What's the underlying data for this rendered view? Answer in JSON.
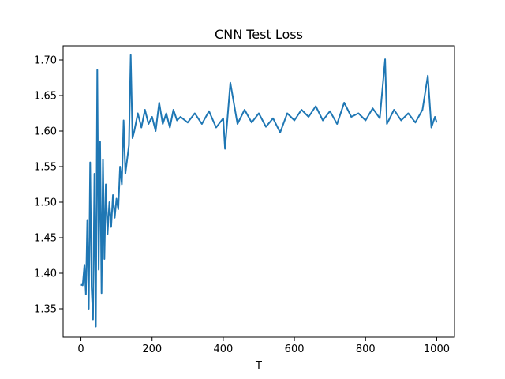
{
  "chart_data": {
    "type": "line",
    "title": "CNN Test Loss",
    "xlabel": "T",
    "ylabel": "",
    "xlim": [
      -50,
      1050
    ],
    "ylim": [
      1.31,
      1.72
    ],
    "x_ticks": [
      0,
      200,
      400,
      600,
      800,
      1000
    ],
    "y_ticks": [
      1.35,
      1.4,
      1.45,
      1.5,
      1.55,
      1.6,
      1.65,
      1.7
    ],
    "x_tick_labels": [
      "0",
      "200",
      "400",
      "600",
      "800",
      "1000"
    ],
    "y_tick_labels": [
      "1.35",
      "1.40",
      "1.45",
      "1.50",
      "1.55",
      "1.60",
      "1.65",
      "1.70"
    ],
    "grid": false,
    "line_color": "#1f77b4",
    "series": [
      {
        "x": [
          0,
          5,
          10,
          14,
          18,
          22,
          26,
          30,
          34,
          38,
          42,
          46,
          50,
          54,
          58,
          62,
          66,
          70,
          75,
          80,
          85,
          90,
          95,
          100,
          105,
          110,
          115,
          120,
          125,
          130,
          135,
          140,
          145,
          150,
          160,
          170,
          180,
          190,
          200,
          210,
          220,
          230,
          240,
          250,
          260,
          270,
          280,
          300,
          320,
          340,
          360,
          380,
          400,
          405,
          420,
          440,
          460,
          480,
          500,
          520,
          540,
          560,
          580,
          600,
          620,
          640,
          660,
          680,
          700,
          720,
          740,
          760,
          780,
          800,
          820,
          840,
          855,
          860,
          880,
          900,
          920,
          940,
          960,
          975,
          985,
          995,
          1000
        ],
        "y": [
          1.384,
          1.383,
          1.412,
          1.37,
          1.475,
          1.35,
          1.556,
          1.38,
          1.335,
          1.54,
          1.325,
          1.686,
          1.405,
          1.585,
          1.372,
          1.56,
          1.42,
          1.525,
          1.455,
          1.5,
          1.465,
          1.51,
          1.478,
          1.505,
          1.49,
          1.55,
          1.525,
          1.615,
          1.54,
          1.56,
          1.58,
          1.707,
          1.59,
          1.6,
          1.625,
          1.605,
          1.63,
          1.61,
          1.62,
          1.6,
          1.64,
          1.61,
          1.625,
          1.605,
          1.63,
          1.615,
          1.62,
          1.612,
          1.625,
          1.61,
          1.628,
          1.605,
          1.618,
          1.575,
          1.668,
          1.61,
          1.63,
          1.612,
          1.625,
          1.606,
          1.618,
          1.598,
          1.625,
          1.615,
          1.63,
          1.62,
          1.635,
          1.615,
          1.628,
          1.61,
          1.64,
          1.62,
          1.625,
          1.615,
          1.632,
          1.618,
          1.701,
          1.61,
          1.63,
          1.615,
          1.625,
          1.612,
          1.63,
          1.678,
          1.605,
          1.62,
          1.612
        ]
      }
    ]
  }
}
